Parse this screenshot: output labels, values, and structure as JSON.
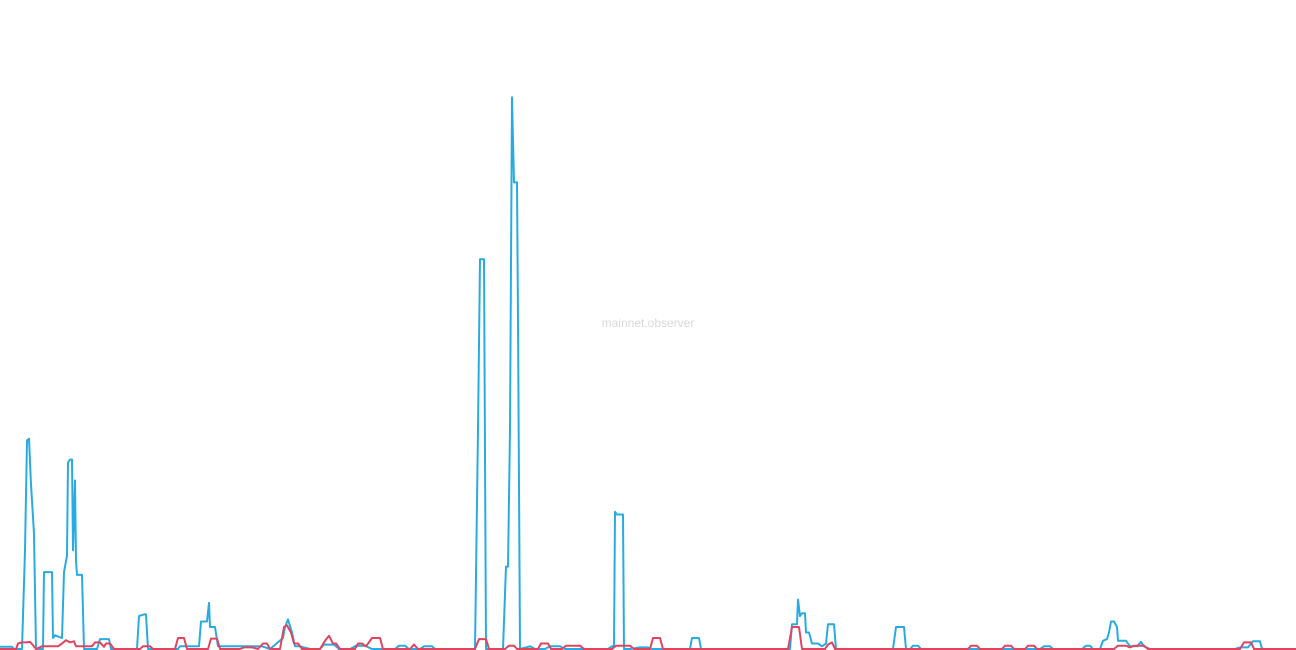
{
  "watermark": "mainnet.observer",
  "colors": {
    "background": "#ffffff",
    "series_blue": "#29abe2",
    "series_red": "#e0455f",
    "watermark": "#d8d8d8"
  },
  "chart_data": {
    "type": "line",
    "title": "",
    "xlabel": "",
    "ylabel": "",
    "grid": false,
    "legend": "none",
    "xlim": [
      0,
      1296
    ],
    "ylim": [
      0,
      100
    ],
    "series": [
      {
        "color": "#29abe2",
        "points": [
          [
            0,
            0.4
          ],
          [
            12,
            0.4
          ],
          [
            14,
            0
          ],
          [
            22,
            0
          ],
          [
            25,
            18
          ],
          [
            27,
            38
          ],
          [
            29,
            38.3
          ],
          [
            31,
            30
          ],
          [
            34,
            21
          ],
          [
            36,
            0
          ],
          [
            43,
            0
          ],
          [
            44,
            14
          ],
          [
            52,
            14
          ],
          [
            53,
            2
          ],
          [
            55,
            2.5
          ],
          [
            62,
            2
          ],
          [
            64,
            14
          ],
          [
            67,
            17
          ],
          [
            68,
            34
          ],
          [
            70,
            34.5
          ],
          [
            72,
            34.5
          ],
          [
            73,
            18
          ],
          [
            75,
            30.7
          ],
          [
            76,
            16
          ],
          [
            77,
            13.5
          ],
          [
            82,
            13.5
          ],
          [
            84,
            0
          ],
          [
            97,
            0
          ],
          [
            100,
            1.8
          ],
          [
            109,
            1.8
          ],
          [
            111,
            0
          ],
          [
            137,
            0
          ],
          [
            139,
            6
          ],
          [
            144,
            6.3
          ],
          [
            146,
            6.3
          ],
          [
            148,
            0
          ],
          [
            178,
            0
          ],
          [
            180,
            0.5
          ],
          [
            199,
            0.5
          ],
          [
            201,
            5
          ],
          [
            207,
            5
          ],
          [
            209,
            8.4
          ],
          [
            210,
            4
          ],
          [
            215,
            4
          ],
          [
            218,
            0.5
          ],
          [
            262,
            0.5
          ],
          [
            270,
            0
          ],
          [
            283,
            2
          ],
          [
            285,
            4
          ],
          [
            288,
            5.4
          ],
          [
            292,
            3
          ],
          [
            295,
            0.5
          ],
          [
            300,
            0.5
          ],
          [
            310,
            0
          ],
          [
            320,
            0
          ],
          [
            324,
            0.8
          ],
          [
            334,
            0.8
          ],
          [
            339,
            0
          ],
          [
            350,
            0
          ],
          [
            356,
            0.6
          ],
          [
            365,
            0.6
          ],
          [
            372,
            0
          ],
          [
            395,
            0
          ],
          [
            399,
            0.6
          ],
          [
            405,
            0.6
          ],
          [
            409,
            0
          ],
          [
            420,
            0
          ],
          [
            424,
            0.5
          ],
          [
            432,
            0.5
          ],
          [
            435,
            0
          ],
          [
            475,
            0
          ],
          [
            478,
            40
          ],
          [
            480,
            71
          ],
          [
            484,
            71
          ],
          [
            486,
            0
          ],
          [
            503,
            0
          ],
          [
            506,
            15
          ],
          [
            508,
            15
          ],
          [
            510,
            40
          ],
          [
            512,
            100.5
          ],
          [
            514,
            85
          ],
          [
            517,
            85
          ],
          [
            518,
            60
          ],
          [
            520,
            0
          ],
          [
            530,
            0.5
          ],
          [
            535,
            0
          ],
          [
            545,
            0
          ],
          [
            550,
            0.5
          ],
          [
            560,
            0.5
          ],
          [
            565,
            0
          ],
          [
            585,
            0
          ],
          [
            598,
            0
          ],
          [
            608,
            0
          ],
          [
            612,
            0.5
          ],
          [
            614,
            0.5
          ],
          [
            615,
            25
          ],
          [
            617,
            24.5
          ],
          [
            623,
            24.5
          ],
          [
            624,
            0
          ],
          [
            630,
            0
          ],
          [
            640,
            0.3
          ],
          [
            648,
            0.3
          ],
          [
            652,
            0
          ],
          [
            690,
            0
          ],
          [
            692,
            2
          ],
          [
            699,
            2
          ],
          [
            701,
            0
          ],
          [
            790,
            0
          ],
          [
            792,
            4.5
          ],
          [
            797,
            4.5
          ],
          [
            798,
            9
          ],
          [
            800,
            6
          ],
          [
            802,
            6.5
          ],
          [
            805,
            6.5
          ],
          [
            806,
            3
          ],
          [
            809,
            3
          ],
          [
            812,
            1
          ],
          [
            818,
            1
          ],
          [
            822,
            0.5
          ],
          [
            826,
            1
          ],
          [
            828,
            4.5
          ],
          [
            834,
            4.5
          ],
          [
            836,
            0
          ],
          [
            893,
            0
          ],
          [
            896,
            4
          ],
          [
            904,
            4
          ],
          [
            906,
            0
          ],
          [
            910,
            0
          ],
          [
            913,
            0.6
          ],
          [
            918,
            0.6
          ],
          [
            921,
            0
          ],
          [
            1040,
            0
          ],
          [
            1044,
            0.5
          ],
          [
            1050,
            0.5
          ],
          [
            1053,
            0
          ],
          [
            1082,
            0
          ],
          [
            1086,
            0.6
          ],
          [
            1090,
            0.6
          ],
          [
            1093,
            0
          ],
          [
            1100,
            0
          ],
          [
            1103,
            1.5
          ],
          [
            1107,
            1.8
          ],
          [
            1109,
            3
          ],
          [
            1111,
            5
          ],
          [
            1114,
            5
          ],
          [
            1117,
            4
          ],
          [
            1118,
            1.5
          ],
          [
            1126,
            1.5
          ],
          [
            1130,
            0.5
          ],
          [
            1137,
            0.5
          ],
          [
            1141,
            1.3
          ],
          [
            1144,
            0.5
          ],
          [
            1150,
            0
          ],
          [
            1235,
            0
          ],
          [
            1240,
            0.3
          ],
          [
            1248,
            0.3
          ],
          [
            1253,
            1.4
          ],
          [
            1260,
            1.4
          ],
          [
            1262,
            0
          ],
          [
            1296,
            0
          ]
        ]
      },
      {
        "color": "#e0455f",
        "points": [
          [
            0,
            0
          ],
          [
            16,
            0
          ],
          [
            18,
            1
          ],
          [
            22,
            1.2
          ],
          [
            26,
            1.2
          ],
          [
            30,
            1.3
          ],
          [
            33,
            0.7
          ],
          [
            36,
            0
          ],
          [
            42,
            0.5
          ],
          [
            58,
            0.5
          ],
          [
            62,
            1
          ],
          [
            66,
            1.6
          ],
          [
            70,
            1.2
          ],
          [
            74,
            1.4
          ],
          [
            76,
            0.5
          ],
          [
            92,
            0.5
          ],
          [
            95,
            1.2
          ],
          [
            100,
            1.2
          ],
          [
            104,
            0.4
          ],
          [
            106,
            1
          ],
          [
            110,
            1
          ],
          [
            114,
            0
          ],
          [
            140,
            0
          ],
          [
            143,
            0.5
          ],
          [
            150,
            0.5
          ],
          [
            153,
            0
          ],
          [
            175,
            0
          ],
          [
            178,
            2
          ],
          [
            184,
            2
          ],
          [
            187,
            0
          ],
          [
            208,
            0
          ],
          [
            211,
            1.9
          ],
          [
            217,
            1.9
          ],
          [
            220,
            0
          ],
          [
            240,
            0
          ],
          [
            244,
            0.3
          ],
          [
            252,
            0.3
          ],
          [
            258,
            0
          ],
          [
            263,
            1
          ],
          [
            267,
            1
          ],
          [
            270,
            0
          ],
          [
            280,
            0
          ],
          [
            284,
            4
          ],
          [
            287,
            4.3
          ],
          [
            291,
            3
          ],
          [
            294,
            1
          ],
          [
            298,
            1
          ],
          [
            302,
            0
          ],
          [
            320,
            0
          ],
          [
            325,
            1.5
          ],
          [
            329,
            2.4
          ],
          [
            333,
            1
          ],
          [
            336,
            1
          ],
          [
            340,
            0
          ],
          [
            355,
            0
          ],
          [
            358,
            1
          ],
          [
            362,
            1
          ],
          [
            366,
            0.5
          ],
          [
            372,
            2
          ],
          [
            380,
            2
          ],
          [
            383,
            0
          ],
          [
            410,
            0
          ],
          [
            414,
            0.8
          ],
          [
            418,
            0
          ],
          [
            475,
            0
          ],
          [
            479,
            1.8
          ],
          [
            486,
            1.8
          ],
          [
            489,
            0
          ],
          [
            505,
            0
          ],
          [
            509,
            0.6
          ],
          [
            514,
            0.6
          ],
          [
            517,
            0
          ],
          [
            538,
            0
          ],
          [
            541,
            1
          ],
          [
            548,
            1
          ],
          [
            551,
            0
          ],
          [
            562,
            0
          ],
          [
            566,
            0.6
          ],
          [
            580,
            0.6
          ],
          [
            584,
            0
          ],
          [
            612,
            0
          ],
          [
            616,
            0.6
          ],
          [
            630,
            0.6
          ],
          [
            634,
            0
          ],
          [
            650,
            0
          ],
          [
            653,
            2
          ],
          [
            660,
            2
          ],
          [
            663,
            0
          ],
          [
            788,
            0
          ],
          [
            792,
            4
          ],
          [
            799,
            4
          ],
          [
            802,
            0
          ],
          [
            825,
            0
          ],
          [
            828,
            0.8
          ],
          [
            832,
            1.2
          ],
          [
            835,
            0
          ],
          [
            968,
            0
          ],
          [
            971,
            0.6
          ],
          [
            977,
            0.6
          ],
          [
            980,
            0
          ],
          [
            1002,
            0
          ],
          [
            1005,
            0.6
          ],
          [
            1011,
            0.6
          ],
          [
            1014,
            0
          ],
          [
            1025,
            0
          ],
          [
            1028,
            0.6
          ],
          [
            1034,
            0.6
          ],
          [
            1037,
            0
          ],
          [
            1114,
            0
          ],
          [
            1118,
            0.6
          ],
          [
            1126,
            0.6
          ],
          [
            1130,
            0.3
          ],
          [
            1134,
            0.6
          ],
          [
            1144,
            0.6
          ],
          [
            1148,
            0
          ],
          [
            1240,
            0
          ],
          [
            1244,
            1.2
          ],
          [
            1251,
            1.2
          ],
          [
            1254,
            0
          ],
          [
            1296,
            0
          ]
        ]
      }
    ]
  }
}
